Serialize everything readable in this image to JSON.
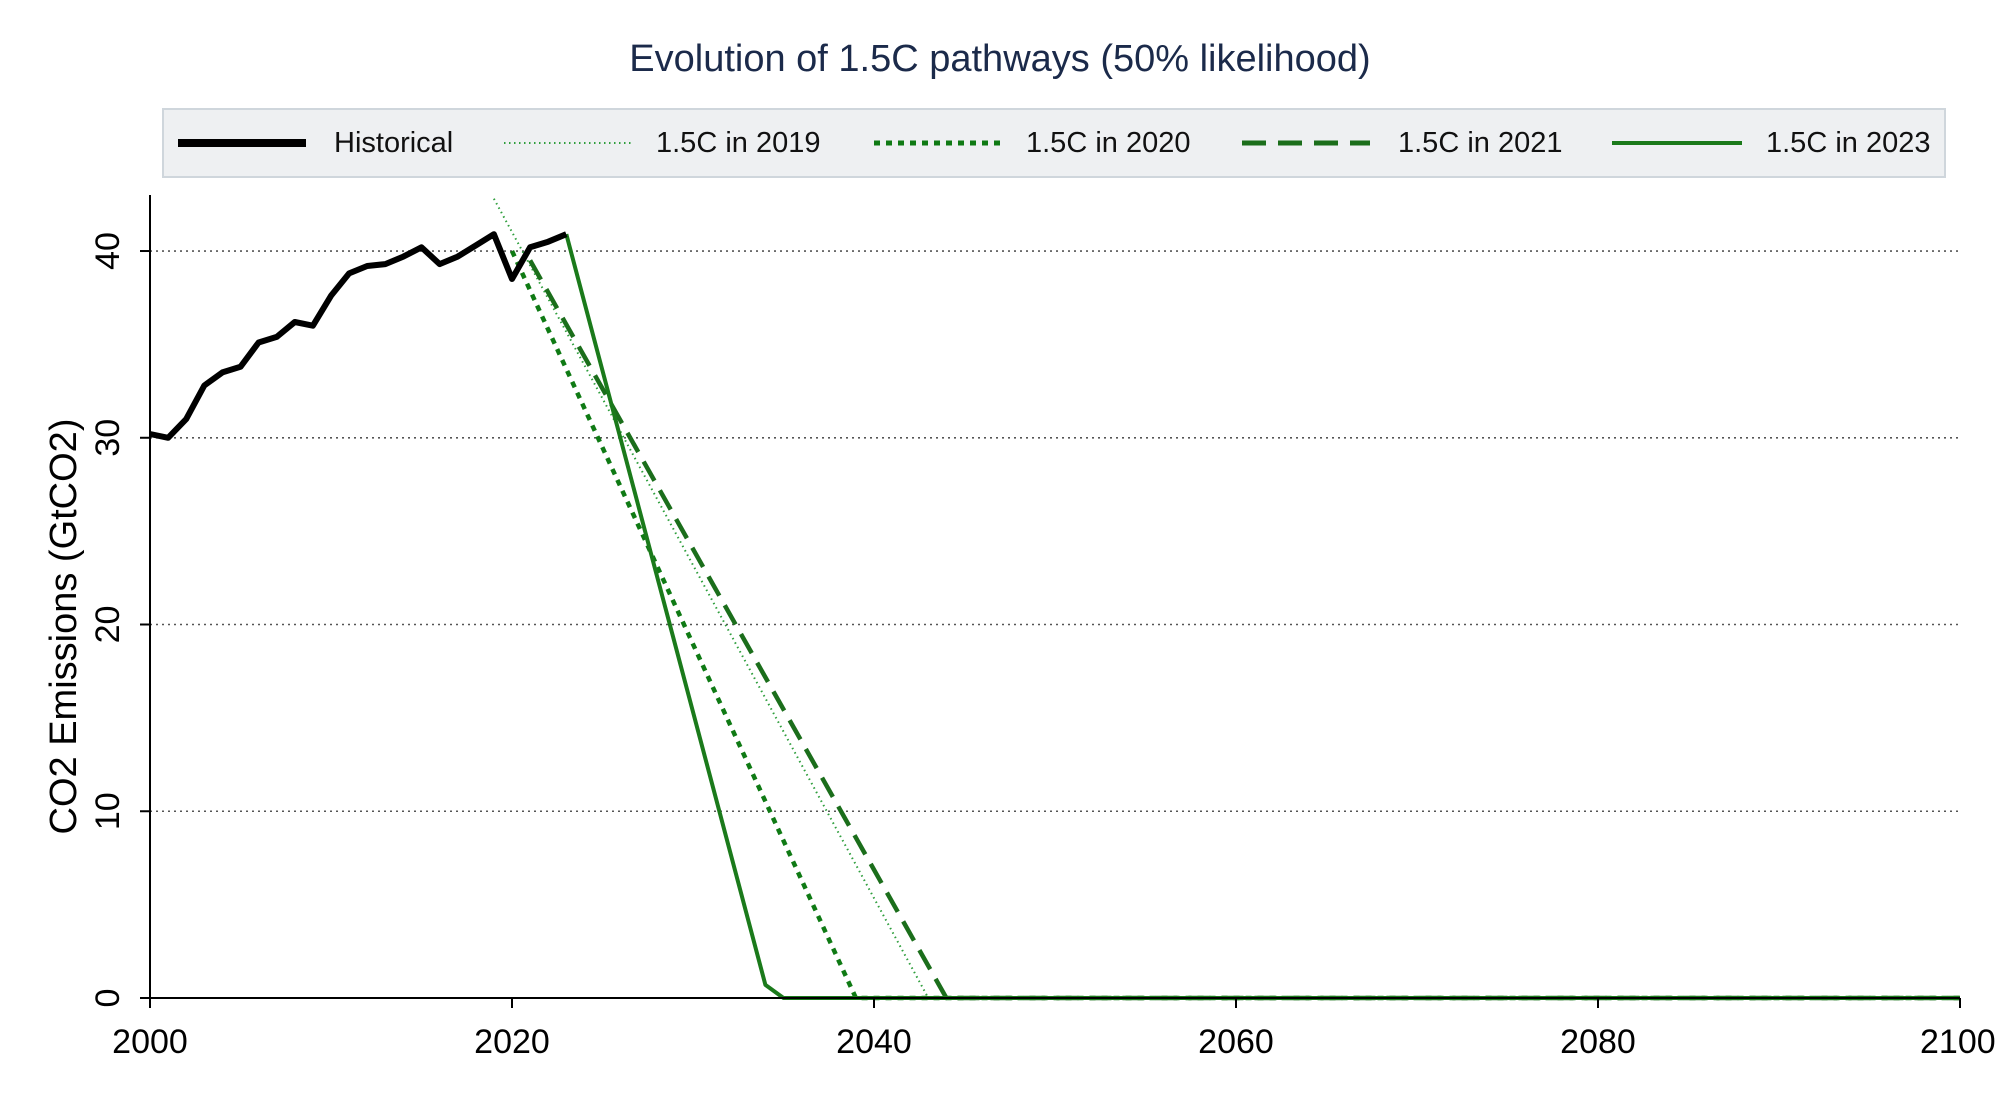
{
  "chart_data": {
    "type": "line",
    "title": "Evolution of 1.5C pathways (50% likelihood)",
    "xlabel": "",
    "ylabel": "CO2 Emissions (GtCO2)",
    "xlim": [
      2000,
      2100
    ],
    "ylim": [
      0,
      43
    ],
    "x_ticks": [
      "2000",
      "2020",
      "2040",
      "2060",
      "2080",
      "2100"
    ],
    "y_ticks": [
      "0",
      "10",
      "20",
      "30",
      "40"
    ],
    "grid": "horizontal dotted",
    "legend_position": "top",
    "series": [
      {
        "name": "Historical",
        "style": "solid-thick",
        "color": "#000000",
        "x": [
          2000,
          2001,
          2002,
          2003,
          2004,
          2005,
          2006,
          2007,
          2008,
          2009,
          2010,
          2011,
          2012,
          2013,
          2014,
          2015,
          2016,
          2017,
          2018,
          2019,
          2020,
          2021,
          2022,
          2023
        ],
        "y": [
          30.2,
          30.0,
          31.0,
          32.8,
          33.5,
          33.8,
          35.1,
          35.4,
          36.2,
          36.0,
          37.6,
          38.8,
          39.2,
          39.3,
          39.7,
          40.2,
          39.3,
          39.7,
          40.3,
          40.9,
          38.5,
          40.2,
          40.5,
          40.9
        ]
      },
      {
        "name": "1.5C in 2019",
        "style": "dotted-fine",
        "color": "#2e9e3c",
        "x": [
          2019,
          2043
        ],
        "y": [
          42.8,
          0
        ]
      },
      {
        "name": "1.5C in 2020",
        "style": "dotted",
        "color": "#0f7a14",
        "x": [
          2020,
          2039,
          2100
        ],
        "y": [
          40.0,
          0,
          0
        ]
      },
      {
        "name": "1.5C in 2021",
        "style": "dashed",
        "color": "#1b6e1b",
        "x": [
          2021,
          2044,
          2100
        ],
        "y": [
          39.5,
          0,
          0
        ]
      },
      {
        "name": "1.5C in 2023",
        "style": "solid",
        "color": "#1b7a1b",
        "x": [
          2023,
          2034,
          2035,
          2100
        ],
        "y": [
          40.9,
          0.7,
          0,
          0
        ]
      }
    ]
  }
}
